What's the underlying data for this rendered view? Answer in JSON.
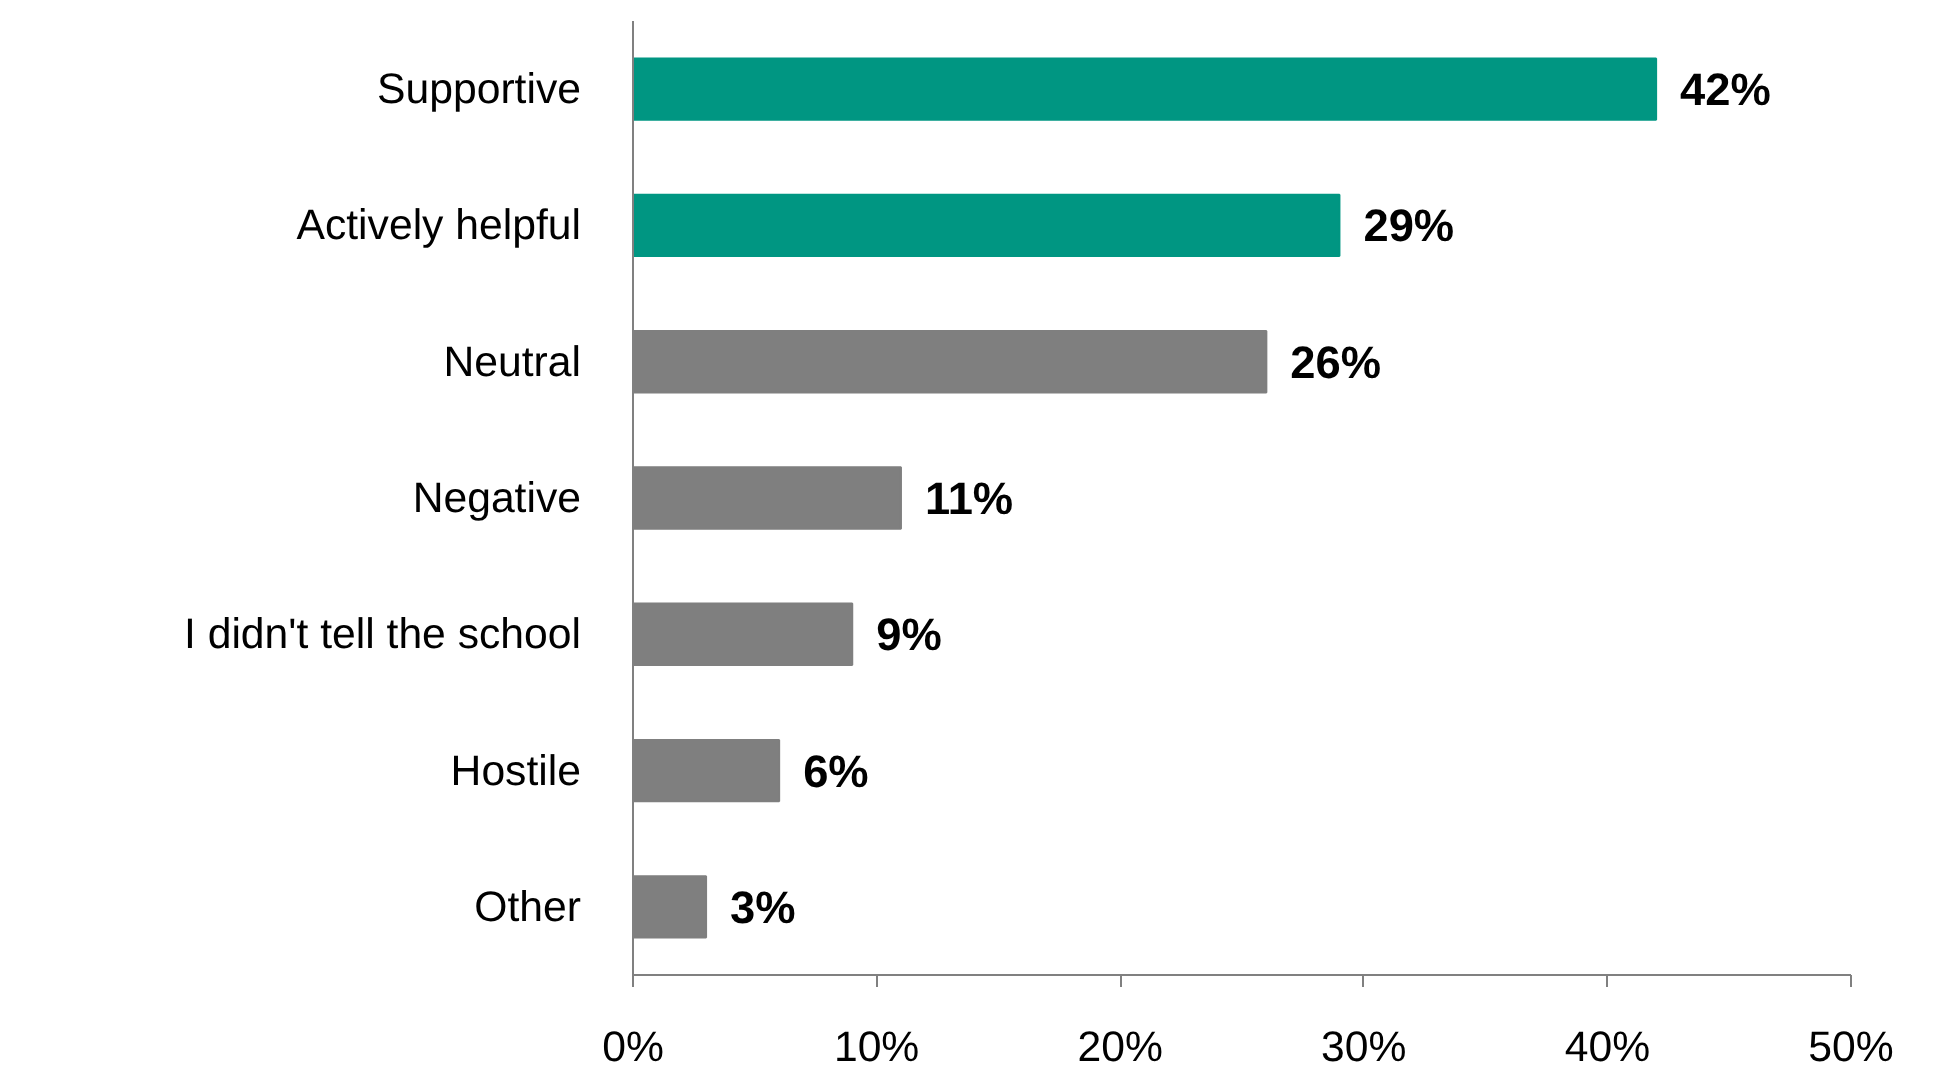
{
  "chart_data": {
    "type": "bar",
    "orientation": "horizontal",
    "categories": [
      "Supportive",
      "Actively helpful",
      "Neutral",
      "Negative",
      "I didn't tell the school",
      "Hostile",
      "Other"
    ],
    "values": [
      42,
      29,
      26,
      11,
      9,
      6,
      3
    ],
    "colors": [
      "#009682",
      "#009682",
      "#7f7f7f",
      "#7f7f7f",
      "#7f7f7f",
      "#7f7f7f",
      "#7f7f7f"
    ],
    "value_labels": [
      "42%",
      "29%",
      "26%",
      "11%",
      "9%",
      "6%",
      "3%"
    ],
    "xlim": [
      0,
      50
    ],
    "xticks": [
      {
        "value": 0,
        "label": "0%"
      },
      {
        "value": 10,
        "label": "10%"
      },
      {
        "value": 20,
        "label": "20%"
      },
      {
        "value": 30,
        "label": "30%"
      },
      {
        "value": 40,
        "label": "40%"
      },
      {
        "value": 50,
        "label": "50%"
      }
    ],
    "grid": false
  }
}
